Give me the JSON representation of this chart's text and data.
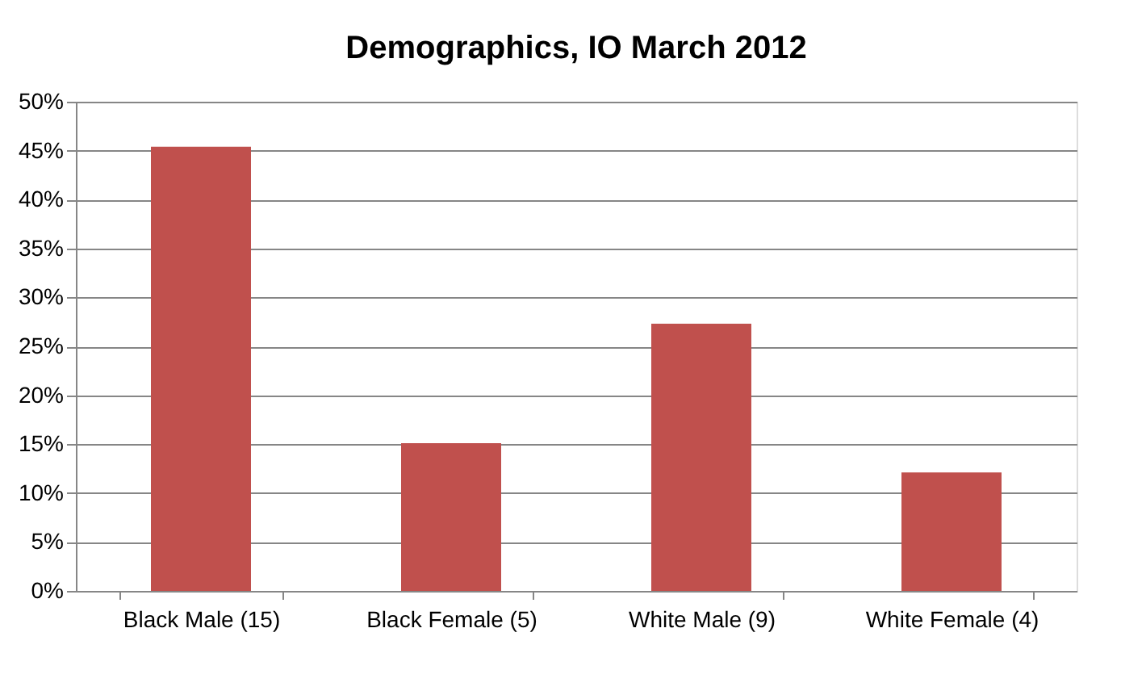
{
  "chart_data": {
    "type": "bar",
    "title": "Demographics, IO March 2012",
    "categories": [
      "Black Male (15)",
      "Black Female (5)",
      "White Male (9)",
      "White Female (4)"
    ],
    "values": [
      45.4,
      15.1,
      27.3,
      12.1
    ],
    "color": "#c0504d",
    "ylim": [
      0,
      50
    ],
    "yticks": [
      {
        "value": 0,
        "label": "0%"
      },
      {
        "value": 5,
        "label": "5%"
      },
      {
        "value": 10,
        "label": "10%"
      },
      {
        "value": 15,
        "label": "15%"
      },
      {
        "value": 20,
        "label": "20%"
      },
      {
        "value": 25,
        "label": "25%"
      },
      {
        "value": 30,
        "label": "30%"
      },
      {
        "value": 35,
        "label": "35%"
      },
      {
        "value": 40,
        "label": "40%"
      },
      {
        "value": 45,
        "label": "45%"
      },
      {
        "value": 50,
        "label": "50%"
      }
    ],
    "grid": "y"
  }
}
